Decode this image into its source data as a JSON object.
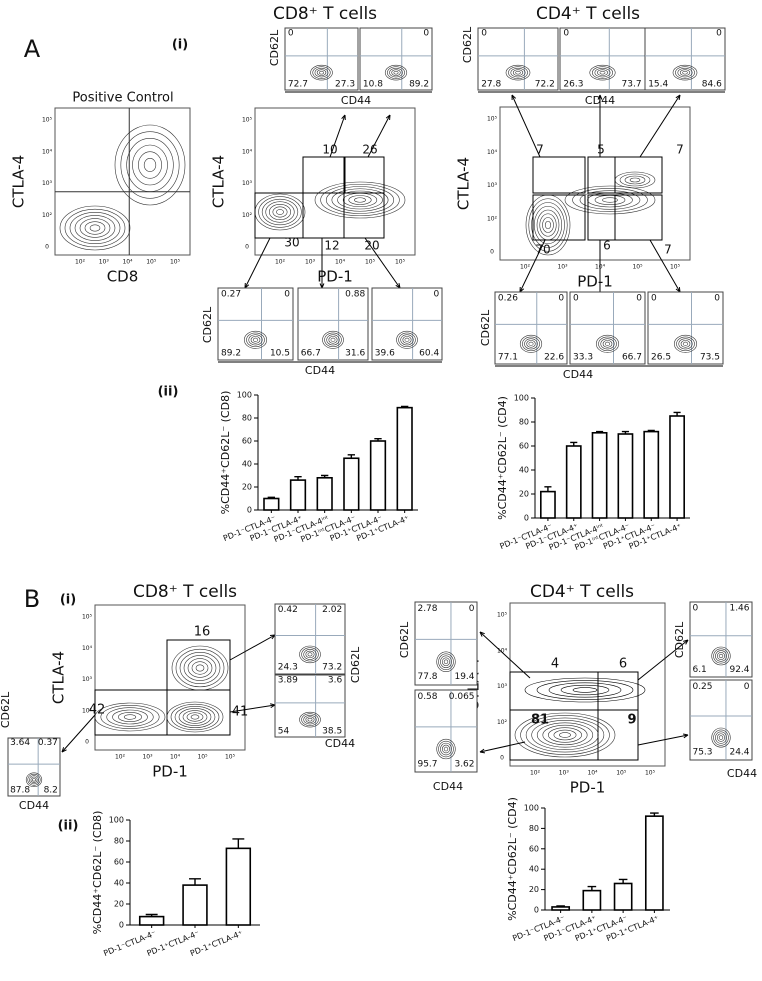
{
  "labels": {
    "panel_a": "A",
    "panel_b": "B",
    "sub_i": "(i)",
    "sub_ii": "(ii)",
    "cd8": "CD8⁺ T cells",
    "cd4": "CD4⁺ T cells",
    "positive_control": "Positive Control",
    "ctla4": "CTLA-4",
    "pd1": "PD-1",
    "cd8_axis": "CD8",
    "cd62l": "CD62L",
    "cd44": "CD44"
  },
  "decades": [
    "10⁵",
    "10⁴",
    "10³",
    "10²",
    "0"
  ],
  "gates": {
    "a_cd8": [
      10,
      26,
      30,
      12,
      20
    ],
    "a_cd4": [
      7,
      5,
      7,
      70,
      6,
      7
    ],
    "b_cd8": [
      16,
      42,
      41
    ],
    "b_cd4": [
      4,
      6,
      81,
      9
    ]
  },
  "quadrants": {
    "a_cd8_top": [
      {
        "tl": 0,
        "bl": 72.7,
        "br": 27.3
      },
      {
        "tr": 0,
        "bl": 10.8,
        "br": 89.2
      }
    ],
    "a_cd4_top": [
      {
        "tl": 0,
        "bl": 27.8,
        "br": 72.2
      },
      {
        "tl": 0,
        "bl": 26.3,
        "br": 73.7
      },
      {
        "tr": 0,
        "bl": 15.4,
        "br": 84.6
      }
    ],
    "a_cd8_bottom": [
      {
        "tl": 0.27,
        "tr": 0,
        "bl": 89.2,
        "br": 10.5
      },
      {
        "tr": 0.88,
        "bl": 66.7,
        "br": 31.6
      },
      {
        "tr": 0,
        "bl": 39.6,
        "br": 60.4
      }
    ],
    "a_cd4_bottom": [
      {
        "tl": 0.26,
        "tr": 0,
        "bl": 77.1,
        "br": 22.6
      },
      {
        "tl": 0,
        "tr": 0,
        "bl": 33.3,
        "br": 66.7
      },
      {
        "tl": 0,
        "tr": 0,
        "bl": 26.5,
        "br": 73.5
      }
    ],
    "b_cd8_left": [
      {
        "tl": 3.64,
        "tr": 0.37,
        "bl": 87.8,
        "br": 8.2
      }
    ],
    "b_cd8_right": [
      {
        "tl": 0.42,
        "tr": 2.02,
        "bl": 24.3,
        "br": 73.2
      },
      {
        "tl": 3.89,
        "tr": 3.6,
        "bl": 54,
        "br": 38.5
      }
    ],
    "b_cd4_left": [
      {
        "tl": 2.78,
        "tr": 0,
        "bl": 77.8,
        "br": 19.4
      },
      {
        "tl": 0.58,
        "tr": 0.065,
        "bl": 95.7,
        "br": 3.62
      }
    ],
    "b_cd4_right": [
      {
        "tl": 0,
        "tr": 1.46,
        "bl": 6.1,
        "br": 92.4
      },
      {
        "tl": 0.25,
        "tr": 0,
        "bl": 75.3,
        "br": 24.4
      }
    ]
  },
  "chart_data": [
    {
      "type": "bar",
      "ylabel": "%CD44⁺CD62L⁻ (CD8)",
      "categories": [
        "PD-1⁻CTLA-4⁻",
        "PD-1⁻CTLA-4⁺",
        "PD-1⁻CTLA-4ⁱⁿᵗ",
        "PD-1ⁱⁿᵗCTLA-4⁻",
        "PD-1⁺CTLA-4⁻",
        "PD-1⁺CTLA-4⁺"
      ],
      "values": [
        10,
        26,
        28,
        45,
        60,
        89
      ],
      "errors": [
        1,
        3,
        2,
        3,
        2,
        1
      ],
      "color": "#ffffff",
      "ylim": [
        0,
        100
      ],
      "yticks": [
        0,
        20,
        40,
        60,
        80,
        100
      ]
    },
    {
      "type": "bar",
      "ylabel": "%CD44⁺CD62L⁻ (CD4)",
      "categories": [
        "PD-1⁻CTLA-4⁻",
        "PD-1⁻CTLA-4⁺",
        "PD-1⁻CTLA-4ⁱⁿᵗ",
        "PD-1ⁱⁿᵗCTLA-4⁻",
        "PD-1⁺CTLA-4⁻",
        "PD-1⁺CTLA-4⁺"
      ],
      "values": [
        22,
        60,
        71,
        70,
        72,
        85
      ],
      "errors": [
        4,
        3,
        1,
        2,
        1,
        3
      ],
      "color": "#ffffff",
      "ylim": [
        0,
        100
      ],
      "yticks": [
        0,
        20,
        40,
        60,
        80,
        100
      ]
    },
    {
      "type": "bar",
      "ylabel": "%CD44⁺CD62L⁻ (CD8)",
      "categories": [
        "PD-1⁻CTLA-4⁻",
        "PD-1⁺CTLA-4⁻",
        "PD-1⁺CTLA-4⁺"
      ],
      "values": [
        8,
        38,
        73
      ],
      "errors": [
        2,
        6,
        9
      ],
      "color": "#ffffff",
      "ylim": [
        0,
        100
      ],
      "yticks": [
        0,
        20,
        40,
        60,
        80,
        100
      ]
    },
    {
      "type": "bar",
      "ylabel": "%CD44⁺CD62L⁻ (CD4)",
      "categories": [
        "PD-1⁻CTLA-4⁻",
        "PD-1⁻CTLA-4⁺",
        "PD-1⁺CTLA-4⁻",
        "PD-1⁺CTLA-4⁺"
      ],
      "values": [
        3,
        19,
        26,
        92
      ],
      "errors": [
        1,
        4,
        4,
        3
      ],
      "color": "#ffffff",
      "ylim": [
        0,
        100
      ],
      "yticks": [
        0,
        20,
        40,
        60,
        80,
        100
      ]
    }
  ]
}
